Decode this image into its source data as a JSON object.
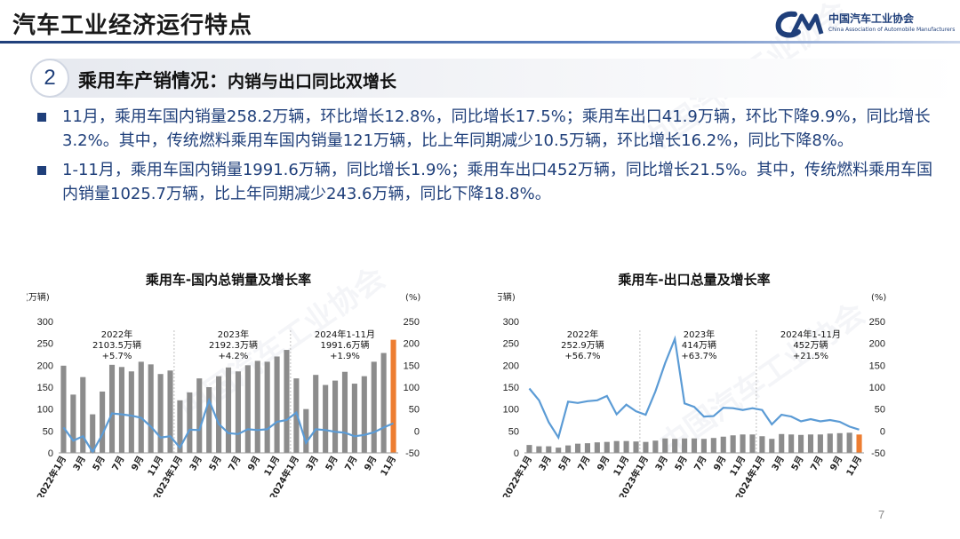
{
  "header": {
    "title": "汽车工业经济运行特点",
    "logo_cn": "中国汽车工业协会",
    "logo_en": "China Association of Automobile Manufacturers",
    "accent": "#1f3f7a"
  },
  "section": {
    "number": "2",
    "title": "乘用车产销情况：",
    "subtitle": "内销与出口同比双增长"
  },
  "bullets": [
    "11月，乘用车国内销量258.2万辆，环比增长12.8%，同比增长17.5%；乘用车出口41.9万辆，环比下降9.9%，同比增长3.2%。其中，传统燃料乘用车国内销量121万辆，比上年同期减少10.5万辆，环比增长16.2%，同比下降8%。",
    "1-11月，乘用车国内销量1991.6万辆，同比增长1.9%；乘用车出口452万辆，同比增长21.5%。其中，传统燃料乘用车国内销量1025.7万辆，比上年同期减少243.6万辆，同比下降18.8%。"
  ],
  "page_number": "7",
  "colors": {
    "bar": "#8c8c8c",
    "bar_highlight": "#ed7d31",
    "line": "#5b9bd5"
  },
  "chart_data": [
    {
      "type": "bar",
      "title": "乘用车-国内总销量及增长率",
      "ylabel_left": "(万辆)",
      "ylabel_right": "(%)",
      "ylim_left": [
        0,
        300
      ],
      "yticks_left": [
        "0",
        "50",
        "100",
        "150",
        "200",
        "250",
        "300"
      ],
      "ylim_right": [
        -50,
        250
      ],
      "yticks_right": [
        "-50",
        "0",
        "50",
        "100",
        "150",
        "200",
        "250"
      ],
      "x_tick_labels": [
        "2022年1月",
        "3月",
        "5月",
        "7月",
        "9月",
        "11月",
        "2023年1月",
        "3月",
        "5月",
        "7月",
        "9月",
        "11月",
        "2024年1月",
        "3月",
        "5月",
        "7月",
        "9月",
        "11月"
      ],
      "x_tick_index": [
        0,
        2,
        4,
        6,
        8,
        10,
        12,
        14,
        16,
        18,
        20,
        22,
        24,
        26,
        28,
        30,
        32,
        34
      ],
      "categories": [
        "2022-01",
        "2022-02",
        "2022-03",
        "2022-04",
        "2022-05",
        "2022-06",
        "2022-07",
        "2022-08",
        "2022-09",
        "2022-10",
        "2022-11",
        "2022-12",
        "2023-01",
        "2023-02",
        "2023-03",
        "2023-04",
        "2023-05",
        "2023-06",
        "2023-07",
        "2023-08",
        "2023-09",
        "2023-10",
        "2023-11",
        "2023-12",
        "2024-01",
        "2024-02",
        "2024-03",
        "2024-04",
        "2024-05",
        "2024-06",
        "2024-07",
        "2024-08",
        "2024-09",
        "2024-10",
        "2024-11"
      ],
      "series": [
        {
          "kind": "bar",
          "axis": "left",
          "values": [
            199,
            133,
            173,
            88,
            140,
            201,
            196,
            186,
            208,
            202,
            180,
            188,
            120,
            138,
            170,
            150,
            175,
            195,
            186,
            200,
            210,
            208,
            220,
            235,
            170,
            100,
            178,
            155,
            165,
            185,
            158,
            175,
            208,
            228,
            258.2
          ]
        },
        {
          "kind": "line",
          "axis": "right",
          "values": [
            8,
            -22,
            -12,
            -48,
            -8,
            40,
            38,
            35,
            30,
            10,
            -15,
            -12,
            -38,
            3,
            2,
            70,
            16,
            -5,
            -7,
            4,
            2,
            4,
            21,
            25,
            42,
            -27,
            4,
            2,
            -2,
            -4,
            -12,
            -9,
            -3,
            8,
            17.5
          ]
        }
      ],
      "annotations": [
        {
          "lines": [
            "2022年",
            "2103.5万辆",
            "+5.7%"
          ]
        },
        {
          "lines": [
            "2023年",
            "2192.3万辆",
            "+4.2%"
          ]
        },
        {
          "lines": [
            "2024年1-11月",
            "1991.6万辆",
            "+1.9%"
          ]
        }
      ],
      "highlight_last": true
    },
    {
      "type": "bar",
      "title": "乘用车-出口总量及增长率",
      "ylabel_left": "(万辆)",
      "ylabel_right": "(%)",
      "ylim_left": [
        0,
        300
      ],
      "yticks_left": [
        "0",
        "50",
        "100",
        "150",
        "200",
        "250",
        "300"
      ],
      "ylim_right": [
        -50,
        250
      ],
      "yticks_right": [
        "-50",
        "0",
        "50",
        "100",
        "150",
        "200",
        "250"
      ],
      "x_tick_labels": [
        "2022年1月",
        "3月",
        "5月",
        "7月",
        "9月",
        "11月",
        "2023年1月",
        "3月",
        "5月",
        "7月",
        "9月",
        "11月",
        "2024年1月",
        "3月",
        "5月",
        "7月",
        "9月",
        "11月"
      ],
      "x_tick_index": [
        0,
        2,
        4,
        6,
        8,
        10,
        12,
        14,
        16,
        18,
        20,
        22,
        24,
        26,
        28,
        30,
        32,
        34
      ],
      "categories": [
        "2022-01",
        "2022-02",
        "2022-03",
        "2022-04",
        "2022-05",
        "2022-06",
        "2022-07",
        "2022-08",
        "2022-09",
        "2022-10",
        "2022-11",
        "2022-12",
        "2023-01",
        "2023-02",
        "2023-03",
        "2023-04",
        "2023-05",
        "2023-06",
        "2023-07",
        "2023-08",
        "2023-09",
        "2023-10",
        "2023-11",
        "2023-12",
        "2024-01",
        "2024-02",
        "2024-03",
        "2024-04",
        "2024-05",
        "2024-06",
        "2024-07",
        "2024-08",
        "2024-09",
        "2024-10",
        "2024-11"
      ],
      "series": [
        {
          "kind": "bar",
          "axis": "left",
          "values": [
            18,
            15,
            15,
            12,
            17,
            21,
            22,
            24,
            25,
            27,
            27,
            26,
            25,
            28,
            33,
            32,
            33,
            33,
            32,
            34,
            37,
            40,
            42,
            42,
            38,
            32,
            43,
            42,
            41,
            42,
            42,
            44,
            45,
            46,
            41.9
          ]
        },
        {
          "kind": "line",
          "axis": "right",
          "values": [
            97,
            70,
            20,
            -15,
            67,
            64,
            68,
            70,
            80,
            38,
            60,
            45,
            37,
            90,
            155,
            210,
            63,
            55,
            33,
            34,
            53,
            52,
            48,
            52,
            48,
            15,
            37,
            33,
            22,
            27,
            22,
            25,
            21,
            10,
            3.2
          ]
        }
      ],
      "annotations": [
        {
          "lines": [
            "2022年",
            "252.9万辆",
            "+56.7%"
          ]
        },
        {
          "lines": [
            "2023年",
            "414万辆",
            "+63.7%"
          ]
        },
        {
          "lines": [
            "2024年1-11月",
            "452万辆",
            "+21.5%"
          ]
        }
      ],
      "highlight_last": true
    }
  ]
}
